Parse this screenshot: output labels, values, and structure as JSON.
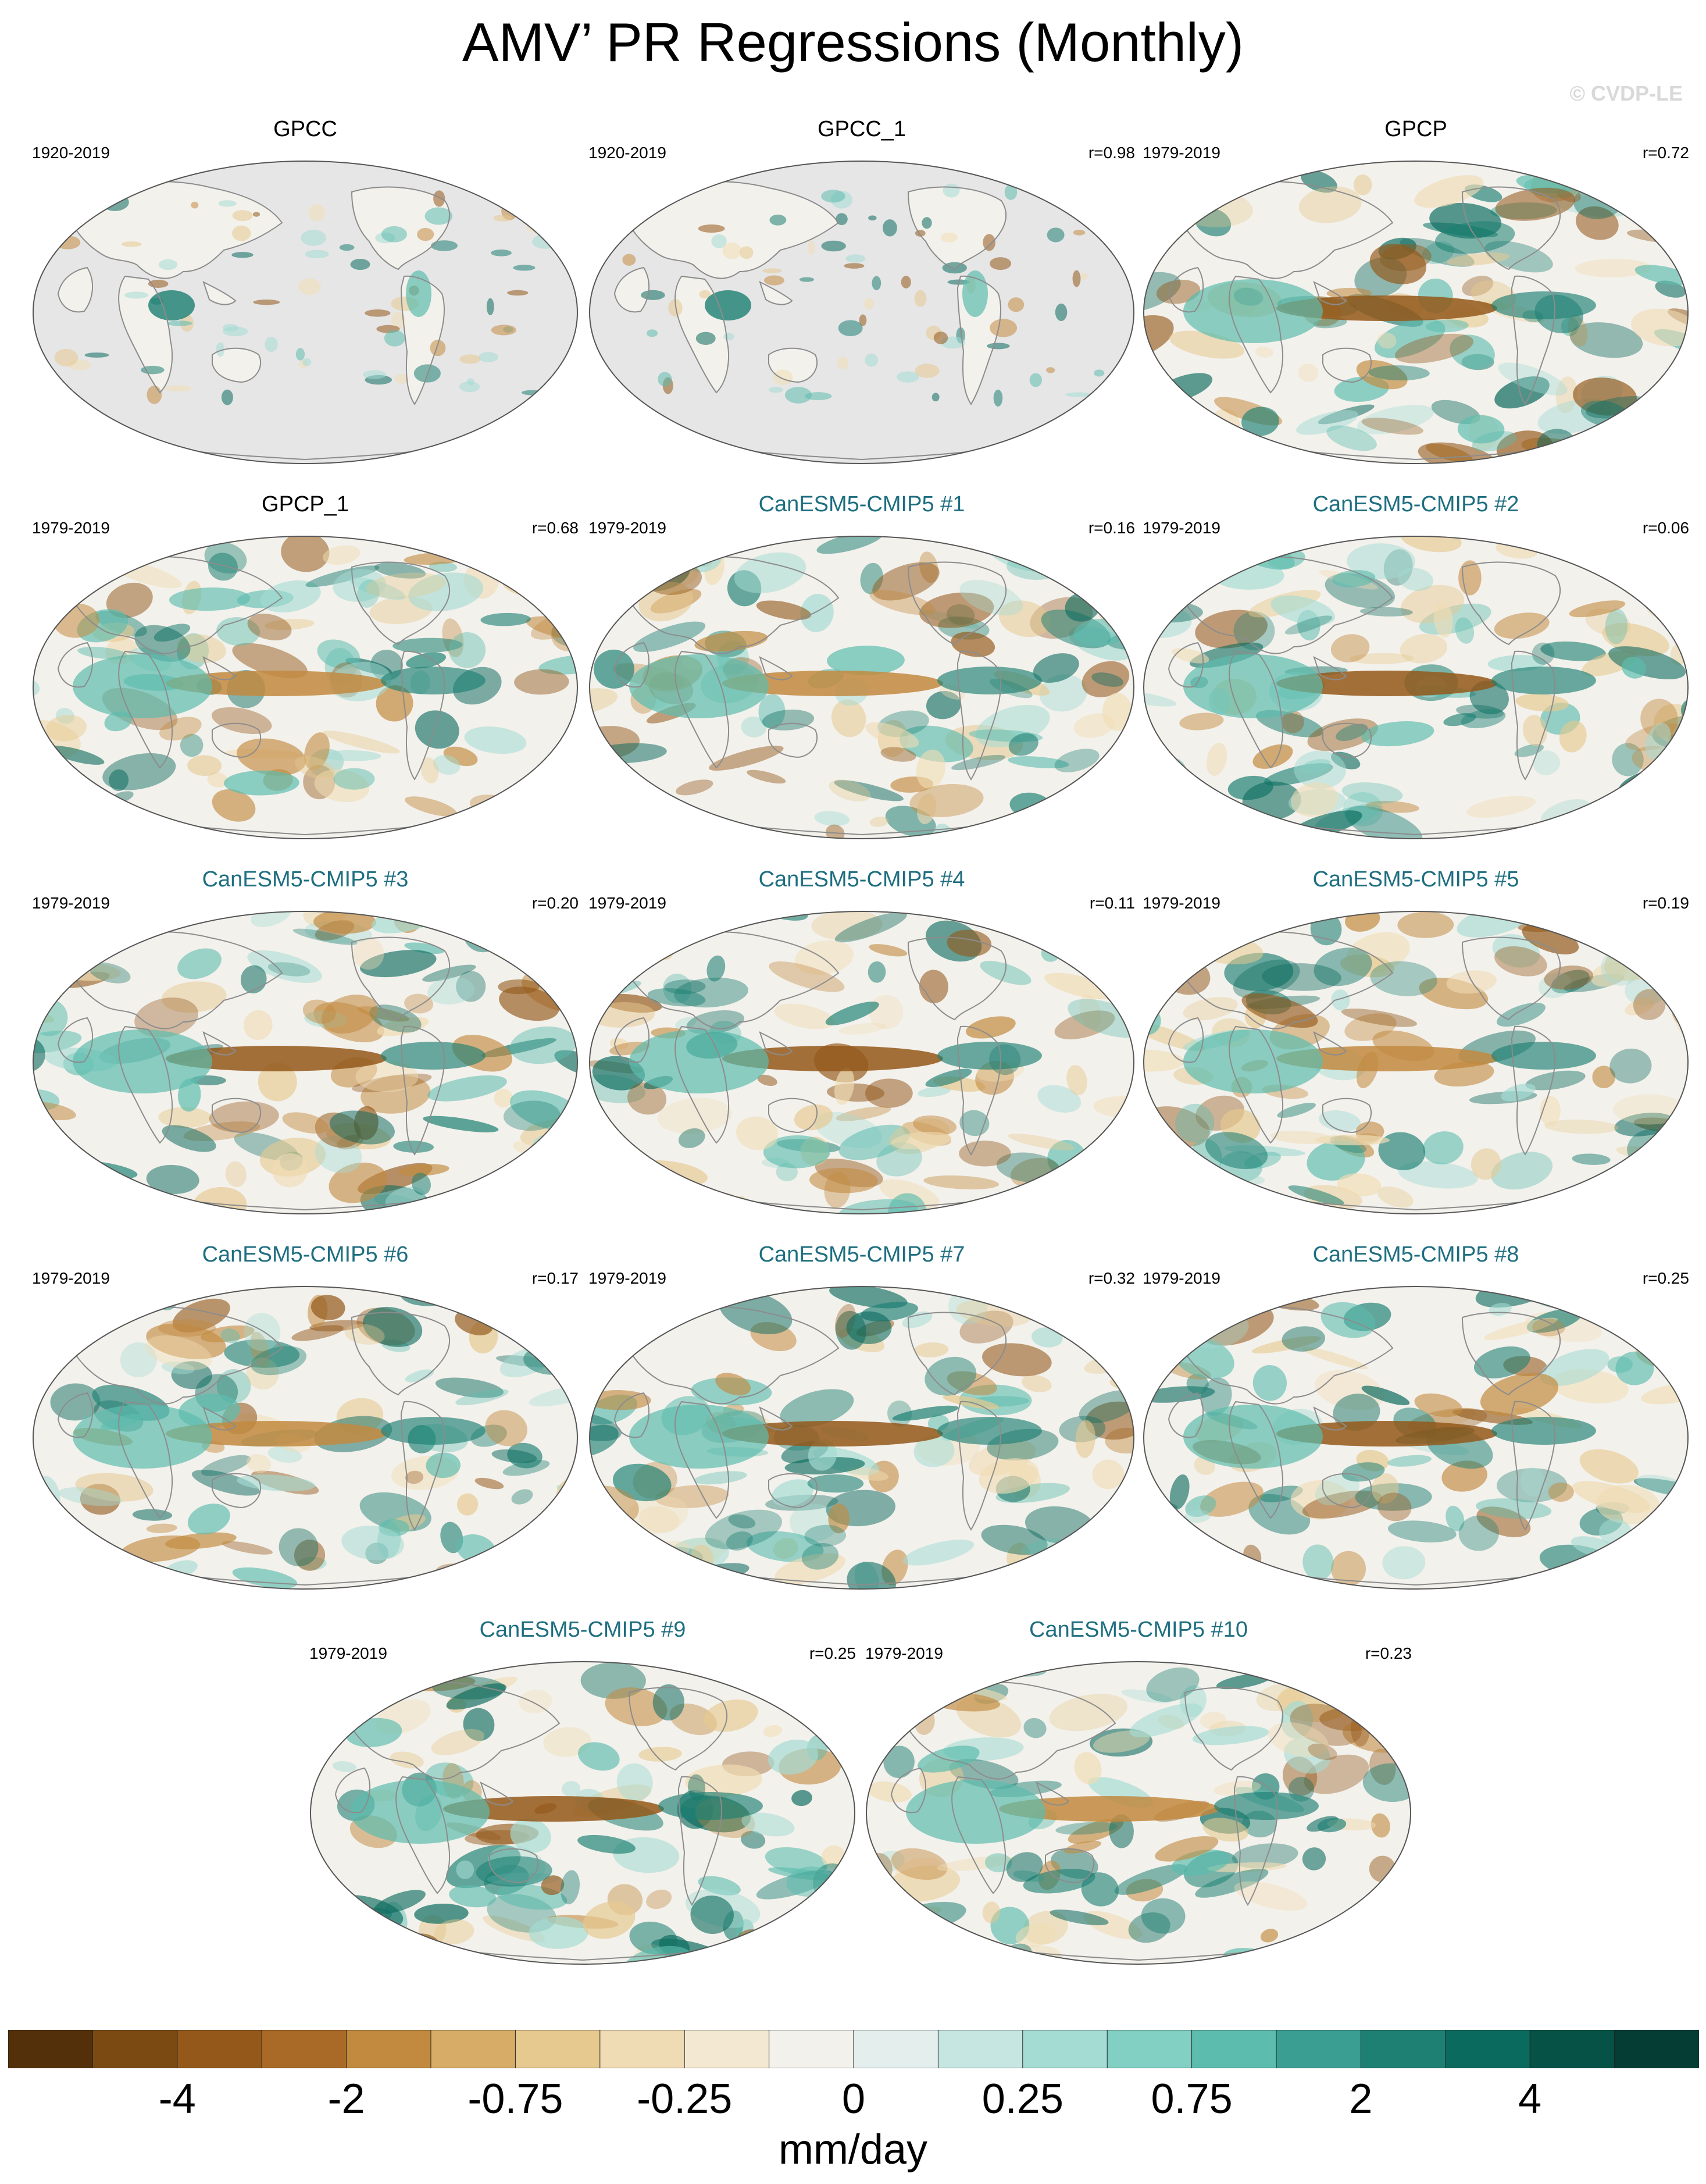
{
  "title": "AMV’ PR Regressions (Monthly)",
  "watermark": "© CVDP-LE",
  "colors": {
    "ocean_missing": "#e6e6e6",
    "coastline": "#8c8c8c",
    "model_title": "#1e6e80"
  },
  "panels": [
    {
      "name": "GPCC",
      "period": "1920-2019",
      "corr": "",
      "kind": "obs",
      "land_only": true
    },
    {
      "name": "GPCC_1",
      "period": "1920-2019",
      "corr": "r=0.98",
      "kind": "obs",
      "land_only": true
    },
    {
      "name": "GPCP",
      "period": "1979-2019",
      "corr": "r=0.72",
      "kind": "obs",
      "land_only": false
    },
    {
      "name": "GPCP_1",
      "period": "1979-2019",
      "corr": "r=0.68",
      "kind": "obs",
      "land_only": false
    },
    {
      "name": "CanESM5-CMIP5 #1",
      "period": "1979-2019",
      "corr": "r=0.16",
      "kind": "model",
      "land_only": false
    },
    {
      "name": "CanESM5-CMIP5 #2",
      "period": "1979-2019",
      "corr": "r=0.06",
      "kind": "model",
      "land_only": false
    },
    {
      "name": "CanESM5-CMIP5 #3",
      "period": "1979-2019",
      "corr": "r=0.20",
      "kind": "model",
      "land_only": false
    },
    {
      "name": "CanESM5-CMIP5 #4",
      "period": "1979-2019",
      "corr": "r=0.11",
      "kind": "model",
      "land_only": false
    },
    {
      "name": "CanESM5-CMIP5 #5",
      "period": "1979-2019",
      "corr": "r=0.19",
      "kind": "model",
      "land_only": false
    },
    {
      "name": "CanESM5-CMIP5 #6",
      "period": "1979-2019",
      "corr": "r=0.17",
      "kind": "model",
      "land_only": false
    },
    {
      "name": "CanESM5-CMIP5 #7",
      "period": "1979-2019",
      "corr": "r=0.32",
      "kind": "model",
      "land_only": false
    },
    {
      "name": "CanESM5-CMIP5 #8",
      "period": "1979-2019",
      "corr": "r=0.25",
      "kind": "model",
      "land_only": false
    },
    {
      "name": "CanESM5-CMIP5 #9",
      "period": "1979-2019",
      "corr": "r=0.25",
      "kind": "model",
      "land_only": false
    },
    {
      "name": "CanESM5-CMIP5 #10",
      "period": "1979-2019",
      "corr": "r=0.23",
      "kind": "model",
      "land_only": false
    }
  ],
  "colorbar": {
    "units": "mm/day",
    "colors": [
      "#54300a",
      "#7a4a12",
      "#93581a",
      "#a86a26",
      "#c28a3f",
      "#d6ac66",
      "#e6c98f",
      "#f0dcb4",
      "#f3e8d1",
      "#f3f1ec",
      "#e4efed",
      "#c6e6e1",
      "#a4dbd3",
      "#82cfc3",
      "#5cbcae",
      "#3a9e92",
      "#1d8073",
      "#0b6a5e",
      "#065246",
      "#053c33"
    ],
    "tick_labels": [
      "-4",
      "-2",
      "-0.75",
      "-0.25",
      "0",
      "0.25",
      "0.75",
      "2",
      "4"
    ]
  }
}
